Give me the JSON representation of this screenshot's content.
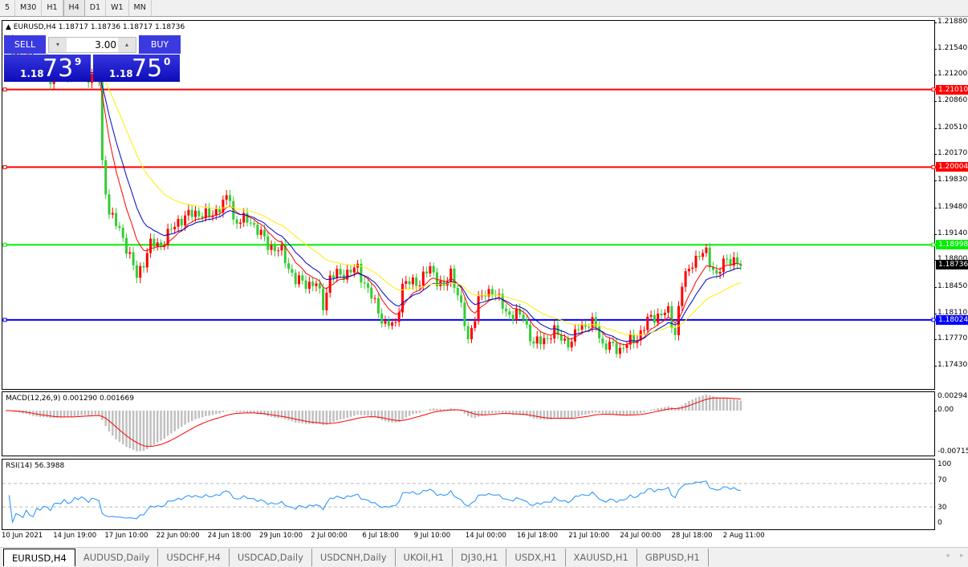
{
  "toolbar": {
    "timeframes": [
      "5",
      "M30",
      "H1",
      "H4",
      "D1",
      "W1",
      "MN"
    ],
    "active": "H4"
  },
  "chart": {
    "header": "EURUSD,H4  1.18717 1.18736 1.18717 1.18736",
    "trade_panel": {
      "sell_label": "SELL",
      "buy_label": "BUY",
      "lot": "3.00",
      "sell_prefix": "1.18",
      "sell_big": "73",
      "sell_sup": "9",
      "buy_prefix": "1.18",
      "buy_big": "75",
      "buy_sup": "0"
    },
    "price_axis": [
      "1.21880",
      "1.21540",
      "1.21200",
      "1.20860",
      "1.20510",
      "1.20170",
      "1.19830",
      "1.19480",
      "1.19140",
      "1.18800",
      "1.18450",
      "1.18110",
      "1.17770",
      "1.17430"
    ],
    "price_range": [
      1.1743,
      1.2188
    ],
    "levels": [
      {
        "value": "1.21010",
        "color": "#ff0000"
      },
      {
        "value": "1.20004",
        "color": "#ff0000"
      },
      {
        "value": "1.18998",
        "color": "#00ee00"
      },
      {
        "value": "1.18024",
        "color": "#0000ff"
      }
    ],
    "current_price": "1.18736",
    "close_waypoints": [
      [
        0,
        1.2165
      ],
      [
        8,
        1.2124
      ],
      [
        13,
        1.2118
      ],
      [
        22,
        1.2124
      ],
      [
        27,
        1.2113
      ],
      [
        28,
        1.2004
      ],
      [
        30,
        1.1942
      ],
      [
        34,
        1.191
      ],
      [
        38,
        1.1858
      ],
      [
        42,
        1.19
      ],
      [
        45,
        1.19
      ],
      [
        50,
        1.1931
      ],
      [
        55,
        1.1942
      ],
      [
        59,
        1.1936
      ],
      [
        65,
        1.1962
      ],
      [
        66,
        1.1931
      ],
      [
        71,
        1.1931
      ],
      [
        76,
        1.19
      ],
      [
        80,
        1.189
      ],
      [
        84,
        1.1853
      ],
      [
        90,
        1.1848
      ],
      [
        92,
        1.1822
      ],
      [
        94,
        1.1858
      ],
      [
        99,
        1.1864
      ],
      [
        102,
        1.1869
      ],
      [
        106,
        1.1832
      ],
      [
        110,
        1.1796
      ],
      [
        113,
        1.1796
      ],
      [
        115,
        1.1848
      ],
      [
        120,
        1.1853
      ],
      [
        123,
        1.1869
      ],
      [
        127,
        1.1843
      ],
      [
        129,
        1.1864
      ],
      [
        131,
        1.1838
      ],
      [
        134,
        1.1775
      ],
      [
        137,
        1.1827
      ],
      [
        141,
        1.1843
      ],
      [
        145,
        1.1812
      ],
      [
        150,
        1.1806
      ],
      [
        153,
        1.177
      ],
      [
        159,
        1.1786
      ],
      [
        164,
        1.177
      ],
      [
        166,
        1.1796
      ],
      [
        171,
        1.1796
      ],
      [
        173,
        1.177
      ],
      [
        178,
        1.1765
      ],
      [
        183,
        1.178
      ],
      [
        187,
        1.1806
      ],
      [
        192,
        1.1812
      ],
      [
        194,
        1.1786
      ],
      [
        196,
        1.1848
      ],
      [
        199,
        1.1879
      ],
      [
        203,
        1.189
      ],
      [
        206,
        1.1858
      ],
      [
        209,
        1.1884
      ],
      [
        213,
        1.1872
      ]
    ],
    "ma_colors": [
      "#ff0000",
      "#0000cc",
      "#ffee00"
    ],
    "up_color": "#ff0000",
    "down_color": "#33cc33"
  },
  "macd": {
    "label": "MACD(12,26,9) 0.001290 0.001669",
    "axis": [
      "0.002947",
      "0.00",
      "-0.00715"
    ]
  },
  "rsi": {
    "label": "RSI(14) 56.3988",
    "axis": [
      "100",
      "70",
      "30",
      "0"
    ],
    "levels": [
      70,
      30
    ],
    "color": "#1e90ff"
  },
  "time_axis": [
    "10 Jun 2021",
    "14 Jun 19:00",
    "17 Jun 10:00",
    "22 Jun 00:00",
    "24 Jun 18:00",
    "29 Jun 10:00",
    "2 Jul 00:00",
    "6 Jul 18:00",
    "9 Jul 10:00",
    "14 Jul 00:00",
    "16 Jul 18:00",
    "21 Jul 10:00",
    "24 Jul 00:00",
    "28 Jul 18:00",
    "2 Aug 11:00"
  ],
  "tabs": [
    "EURUSD,H4",
    "AUDUSD,Daily",
    "USDCHF,H4",
    "USDCAD,Daily",
    "USDCNH,Daily",
    "UKOil,H1",
    "DJ30,H1",
    "USDX,H1",
    "XAUUSD,H1",
    "GBPUSD,H1"
  ],
  "active_tab": "EURUSD,H4"
}
